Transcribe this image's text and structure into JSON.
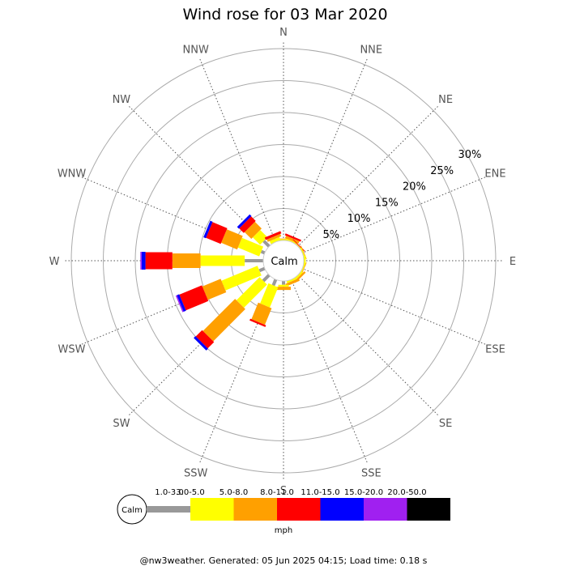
{
  "chart_data": {
    "type": "wind_rose",
    "title": "Wind rose for 03 Mar 2020",
    "calm_label": "Calm",
    "unit_label": "mph",
    "footer": "@nw3weather. Generated: 05 Jun 2025 04:15; Load time: 0.18 s",
    "directions": [
      "N",
      "NNE",
      "NE",
      "ENE",
      "E",
      "ESE",
      "SE",
      "SSE",
      "S",
      "SSW",
      "SW",
      "WSW",
      "W",
      "WNW",
      "NW",
      "NNW"
    ],
    "ring_labels": [
      "5%",
      "10%",
      "15%",
      "20%",
      "25%",
      "30%"
    ],
    "rings": [
      5,
      10,
      15,
      20,
      25,
      30
    ],
    "max_percent": 30,
    "calm_percent": 2.5,
    "speed_bins": [
      {
        "label": "1.0-3.0",
        "color": "#999999"
      },
      {
        "label": "3.0-5.0",
        "color": "#ffff00"
      },
      {
        "label": "5.0-8.0",
        "color": "#ffa000"
      },
      {
        "label": "8.0-11.0",
        "color": "#ff0000"
      },
      {
        "label": "11.0-15.0",
        "color": "#0000ff"
      },
      {
        "label": "15.0-20.0",
        "color": "#a020f0"
      },
      {
        "label": "20.0-50.0",
        "color": "#000000"
      }
    ],
    "series": [
      {
        "direction": "N",
        "values": [
          0.0,
          0.2,
          0.1,
          0.0,
          0,
          0,
          0
        ]
      },
      {
        "direction": "NNE",
        "values": [
          0.0,
          0.2,
          0.4,
          0.3,
          0,
          0,
          0
        ]
      },
      {
        "direction": "NE",
        "values": [
          0.0,
          0.1,
          0.1,
          0.1,
          0,
          0,
          0
        ]
      },
      {
        "direction": "ENE",
        "values": [
          0.0,
          0.2,
          0.1,
          0.0,
          0,
          0,
          0
        ]
      },
      {
        "direction": "E",
        "values": [
          0.0,
          0.3,
          0.0,
          0.0,
          0,
          0,
          0
        ]
      },
      {
        "direction": "ESE",
        "values": [
          0.0,
          0.2,
          0.1,
          0.0,
          0,
          0,
          0
        ]
      },
      {
        "direction": "SE",
        "values": [
          0.0,
          0.3,
          0.3,
          0.0,
          0,
          0,
          0
        ]
      },
      {
        "direction": "SSE",
        "values": [
          0.0,
          0.3,
          0.4,
          0.0,
          0,
          0,
          0
        ]
      },
      {
        "direction": "S",
        "values": [
          0.6,
          0.3,
          0.5,
          0.0,
          0,
          0,
          0
        ]
      },
      {
        "direction": "SSW",
        "values": [
          1.0,
          3.4,
          2.8,
          0.3,
          0,
          0,
          0
        ]
      },
      {
        "direction": "SW",
        "values": [
          1.3,
          5.1,
          7.1,
          1.4,
          0.4,
          0,
          0
        ]
      },
      {
        "direction": "WSW",
        "values": [
          0.9,
          6.1,
          3.1,
          3.8,
          0.4,
          0.2,
          0
        ]
      },
      {
        "direction": "W",
        "values": [
          2.9,
          6.9,
          4.4,
          4.2,
          0.6,
          0.2,
          0
        ]
      },
      {
        "direction": "WNW",
        "values": [
          0.6,
          3.6,
          2.7,
          2.5,
          0.4,
          0,
          0
        ]
      },
      {
        "direction": "NW",
        "values": [
          1.2,
          1.6,
          1.5,
          1.0,
          0.4,
          0,
          0
        ]
      },
      {
        "direction": "NNW",
        "values": [
          0.0,
          0.5,
          0.4,
          0.4,
          0,
          0,
          0
        ]
      }
    ]
  }
}
